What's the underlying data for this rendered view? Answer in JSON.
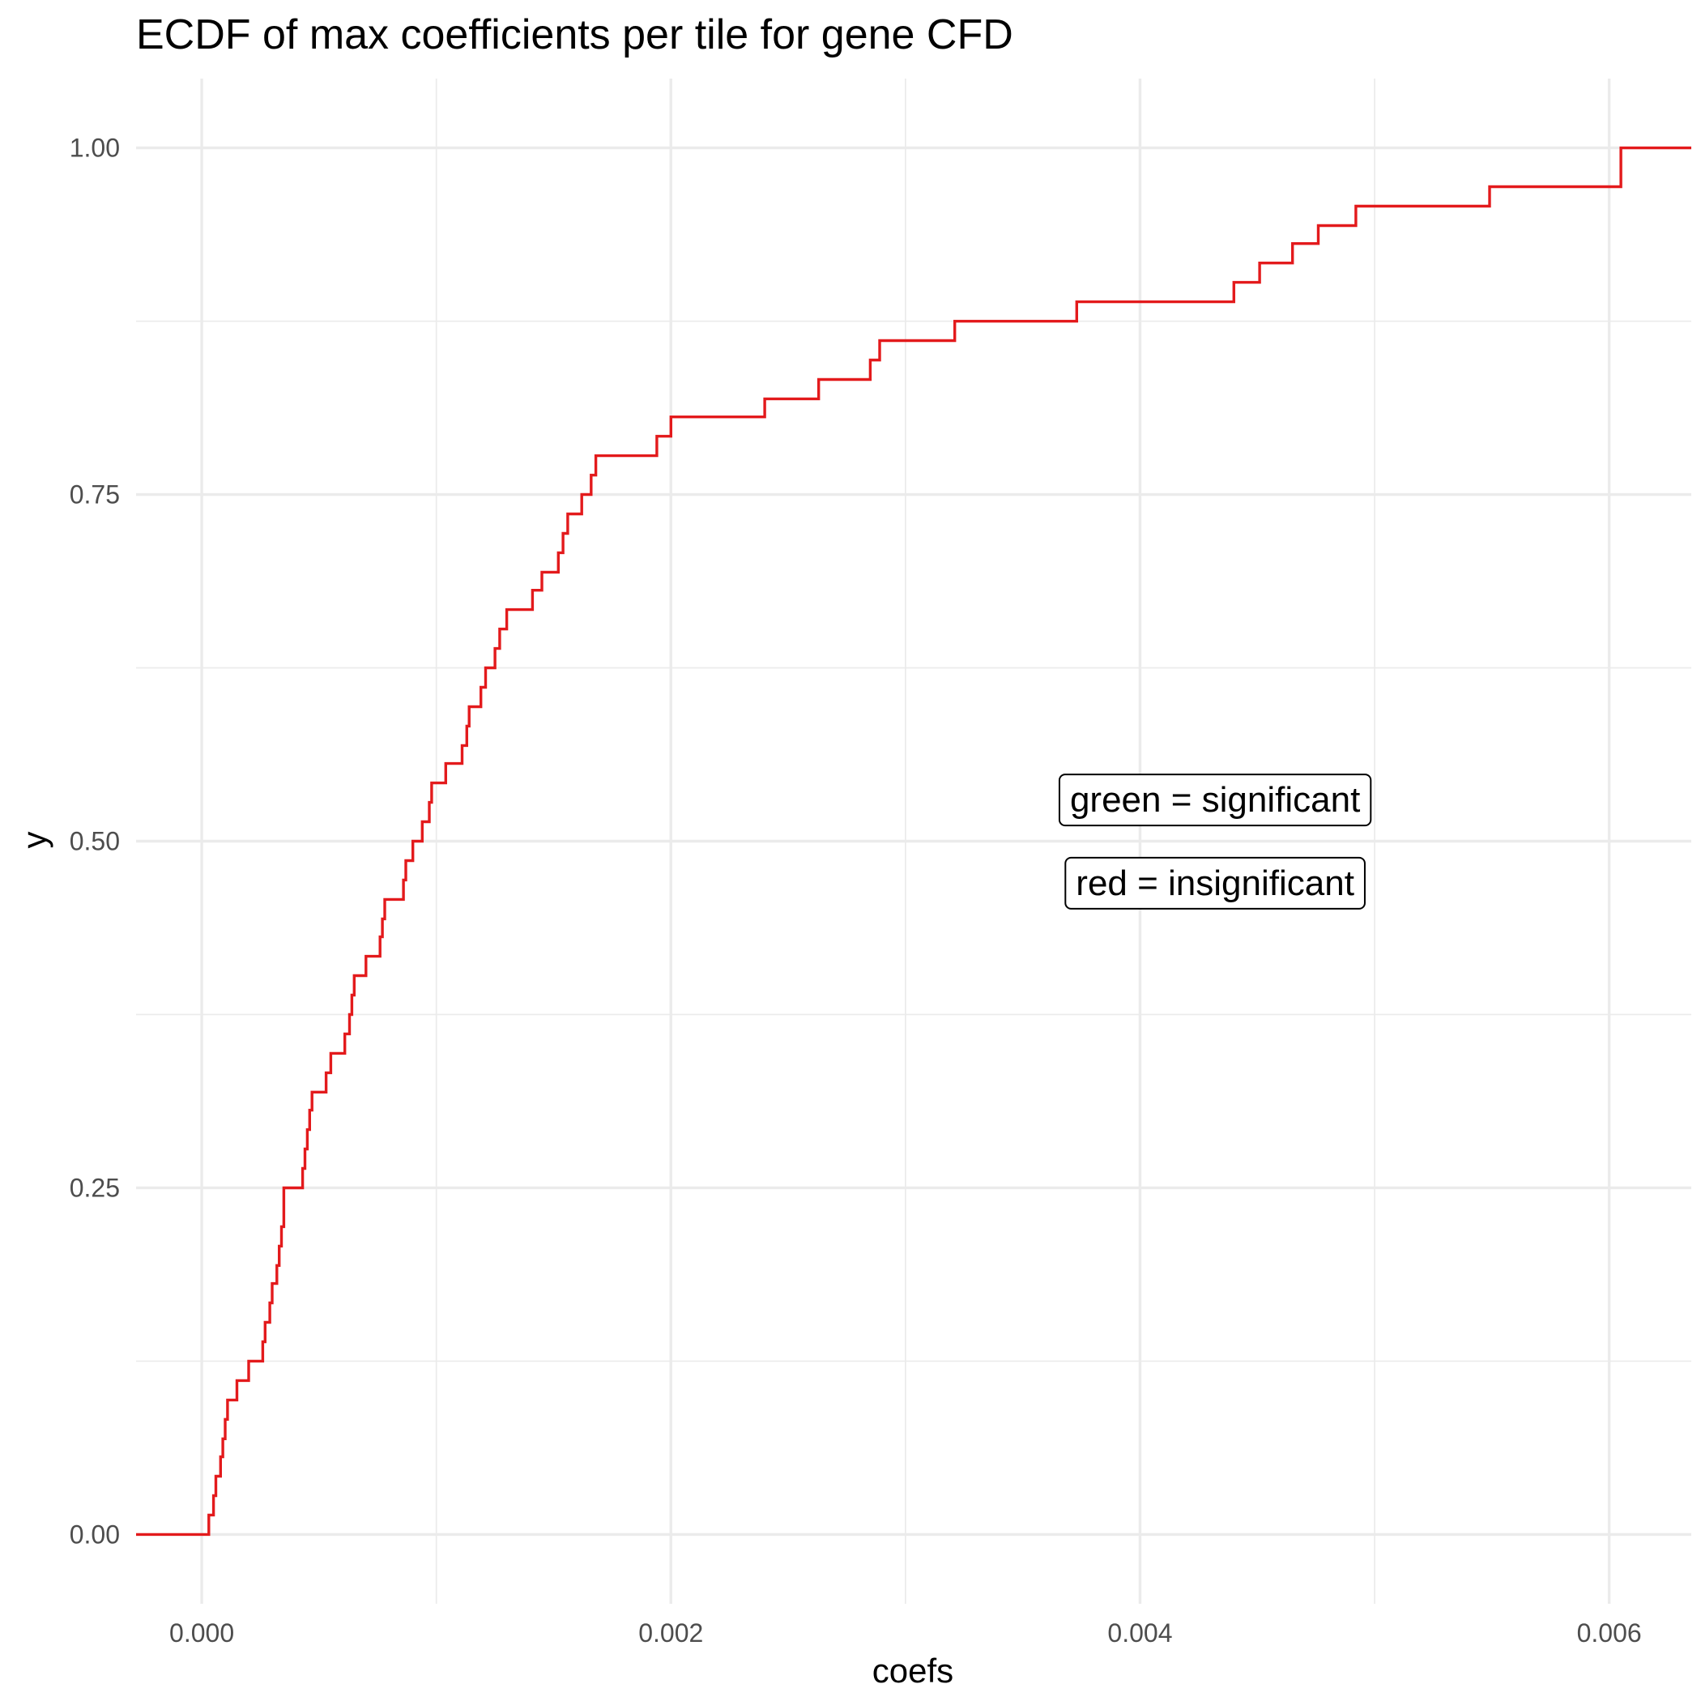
{
  "chart_data": {
    "type": "line",
    "subtype": "ecdf-step",
    "title": "ECDF of max coefficients per tile for gene CFD",
    "xlabel": "coefs",
    "ylabel": "y",
    "xlim": [
      -0.00028,
      0.00635
    ],
    "ylim": [
      -0.05,
      1.05
    ],
    "x_ticks": [
      0.0,
      0.002,
      0.004,
      0.006
    ],
    "x_tick_labels": [
      "0.000",
      "0.002",
      "0.004",
      "0.006"
    ],
    "y_ticks": [
      0.0,
      0.25,
      0.5,
      0.75,
      1.0
    ],
    "y_tick_labels": [
      "0.00",
      "0.25",
      "0.50",
      "0.75",
      "1.00"
    ],
    "grid": true,
    "line_color": "#e31a1c",
    "series": [
      {
        "values": [
          [
            3e-05,
            0.014
          ],
          [
            5e-05,
            0.028
          ],
          [
            6e-05,
            0.042
          ],
          [
            8e-05,
            0.056
          ],
          [
            9e-05,
            0.069
          ],
          [
            0.0001,
            0.083
          ],
          [
            0.00011,
            0.097
          ],
          [
            0.00015,
            0.111
          ],
          [
            0.0002,
            0.125
          ],
          [
            0.00026,
            0.139
          ],
          [
            0.00027,
            0.153
          ],
          [
            0.00029,
            0.167
          ],
          [
            0.0003,
            0.181
          ],
          [
            0.00032,
            0.194
          ],
          [
            0.00033,
            0.208
          ],
          [
            0.00034,
            0.222
          ],
          [
            0.00035,
            0.236
          ],
          [
            0.00035,
            0.25
          ],
          [
            0.00043,
            0.264
          ],
          [
            0.00044,
            0.278
          ],
          [
            0.00045,
            0.292
          ],
          [
            0.00046,
            0.306
          ],
          [
            0.00047,
            0.319
          ],
          [
            0.00053,
            0.333
          ],
          [
            0.00055,
            0.347
          ],
          [
            0.00061,
            0.361
          ],
          [
            0.00063,
            0.375
          ],
          [
            0.00064,
            0.389
          ],
          [
            0.00065,
            0.403
          ],
          [
            0.0007,
            0.417
          ],
          [
            0.00076,
            0.431
          ],
          [
            0.00077,
            0.444
          ],
          [
            0.00078,
            0.458
          ],
          [
            0.00086,
            0.472
          ],
          [
            0.00087,
            0.486
          ],
          [
            0.0009,
            0.5
          ],
          [
            0.00094,
            0.514
          ],
          [
            0.00097,
            0.528
          ],
          [
            0.00098,
            0.542
          ],
          [
            0.00104,
            0.556
          ],
          [
            0.00111,
            0.569
          ],
          [
            0.00113,
            0.583
          ],
          [
            0.00114,
            0.597
          ],
          [
            0.00119,
            0.611
          ],
          [
            0.00121,
            0.625
          ],
          [
            0.00125,
            0.639
          ],
          [
            0.00127,
            0.653
          ],
          [
            0.0013,
            0.667
          ],
          [
            0.00141,
            0.681
          ],
          [
            0.00145,
            0.694
          ],
          [
            0.00152,
            0.708
          ],
          [
            0.00154,
            0.722
          ],
          [
            0.00156,
            0.736
          ],
          [
            0.00162,
            0.75
          ],
          [
            0.00166,
            0.764
          ],
          [
            0.00168,
            0.778
          ],
          [
            0.00194,
            0.792
          ],
          [
            0.002,
            0.806
          ],
          [
            0.0024,
            0.819
          ],
          [
            0.00263,
            0.833
          ],
          [
            0.00285,
            0.847
          ],
          [
            0.00289,
            0.861
          ],
          [
            0.00321,
            0.875
          ],
          [
            0.00373,
            0.889
          ],
          [
            0.0044,
            0.903
          ],
          [
            0.00451,
            0.917
          ],
          [
            0.00465,
            0.931
          ],
          [
            0.00476,
            0.944
          ],
          [
            0.00492,
            0.958
          ],
          [
            0.00549,
            0.972
          ],
          [
            0.00605,
            0.986
          ],
          [
            0.00605,
            1.0
          ]
        ]
      }
    ],
    "annotations": [
      {
        "text": "green = significant",
        "x": 0.00432,
        "y": 0.53
      },
      {
        "text": "red = insignificant",
        "x": 0.00432,
        "y": 0.47
      }
    ]
  }
}
